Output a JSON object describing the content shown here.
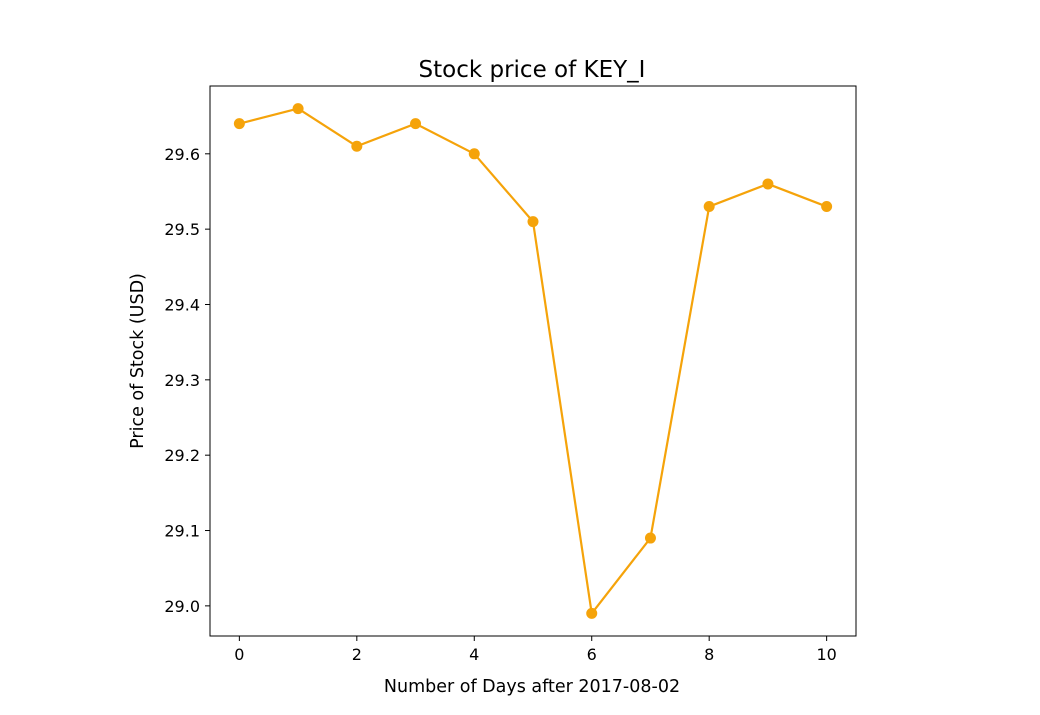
{
  "chart_data": {
    "type": "line",
    "title": "Stock price of KEY_I",
    "xlabel": "Number of Days after 2017-08-02",
    "ylabel": "Price of Stock (USD)",
    "x": [
      0,
      1,
      2,
      3,
      4,
      5,
      6,
      7,
      8,
      9,
      10
    ],
    "series": [
      {
        "values": [
          29.64,
          29.66,
          29.61,
          29.64,
          29.6,
          29.51,
          28.99,
          29.09,
          29.53,
          29.56,
          29.53
        ],
        "color": "#f5a30a"
      }
    ],
    "xlim": [
      -0.5,
      10.5
    ],
    "ylim": [
      28.96,
      29.69
    ],
    "xticks": [
      0,
      2,
      4,
      6,
      8,
      10
    ],
    "yticks": [
      29.0,
      29.1,
      29.2,
      29.3,
      29.4,
      29.5,
      29.6
    ],
    "xtick_labels": [
      "0",
      "2",
      "4",
      "6",
      "8",
      "10"
    ],
    "ytick_labels": [
      "29.0",
      "29.1",
      "29.2",
      "29.3",
      "29.4",
      "29.5",
      "29.6"
    ],
    "grid": false,
    "legend": false
  }
}
